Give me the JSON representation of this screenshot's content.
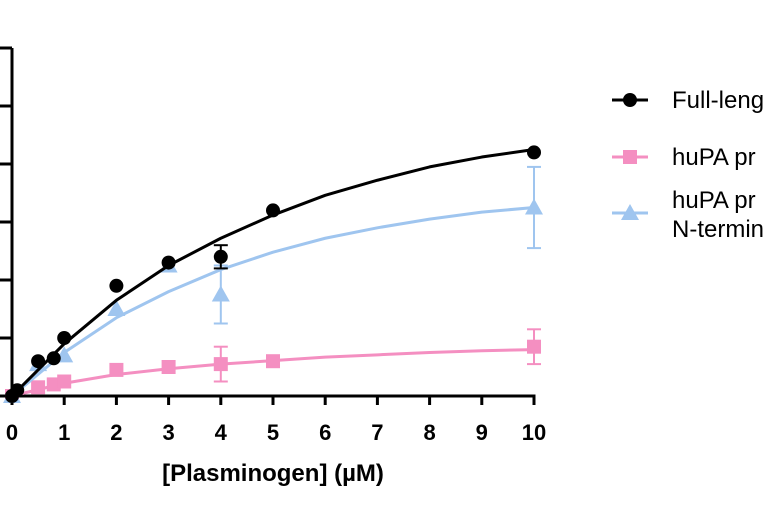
{
  "chart_data": {
    "type": "scatter",
    "xlabel": "[Plasminogen] (µM)",
    "ylabel": "",
    "title": "",
    "xlim": [
      0,
      10
    ],
    "ylim": [
      0,
      6
    ],
    "x_ticks": [
      "0",
      "1",
      "2",
      "3",
      "4",
      "5",
      "6",
      "7",
      "8",
      "9",
      "10"
    ],
    "legend_position": "right",
    "series": [
      {
        "name": "Full-leng",
        "color": "#000000",
        "marker": "circle",
        "x": [
          0,
          0.1,
          0.5,
          0.8,
          1,
          2,
          3,
          4,
          5,
          10
        ],
        "y": [
          0.0,
          0.1,
          0.6,
          0.65,
          1.0,
          1.9,
          2.3,
          2.4,
          3.2,
          4.2
        ],
        "y_err": [
          0,
          0,
          0,
          0,
          0,
          0,
          0,
          0.2,
          0,
          0
        ],
        "fit_y": [
          0,
          0.9,
          1.65,
          2.25,
          2.72,
          3.12,
          3.46,
          3.72,
          3.95,
          4.12,
          4.25
        ]
      },
      {
        "name": "huPA pr",
        "color": "#f48fc1",
        "marker": "square",
        "x": [
          0,
          0.5,
          0.8,
          1,
          2,
          3,
          4,
          5,
          10
        ],
        "y": [
          0.0,
          0.15,
          0.2,
          0.25,
          0.45,
          0.5,
          0.55,
          0.6,
          0.85
        ],
        "y_err": [
          0,
          0,
          0,
          0,
          0,
          0,
          0.3,
          0,
          0.3
        ],
        "fit_y": [
          0,
          0.22,
          0.37,
          0.47,
          0.55,
          0.61,
          0.67,
          0.71,
          0.75,
          0.78,
          0.8
        ]
      },
      {
        "name": "huPA pr",
        "name_line2": "N-termin",
        "color": "#9fc5ef",
        "marker": "triangle",
        "x": [
          0,
          0.5,
          1,
          2,
          3,
          4,
          10
        ],
        "y": [
          0.0,
          0.55,
          0.7,
          1.5,
          2.25,
          1.75,
          3.25
        ],
        "y_err": [
          0,
          0,
          0,
          0,
          0,
          0.5,
          0.7
        ],
        "fit_y": [
          0,
          0.75,
          1.35,
          1.8,
          2.18,
          2.48,
          2.72,
          2.9,
          3.05,
          3.17,
          3.25
        ]
      }
    ]
  }
}
